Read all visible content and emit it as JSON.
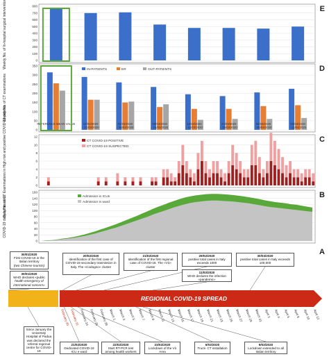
{
  "colors": {
    "blue": "#3b6fc9",
    "orange": "#e87d34",
    "gray": "#a6a6a6",
    "red_dark": "#a01f1f",
    "red_light": "#f0a0a0",
    "green": "#59a83a",
    "icu_gray": "#c4c4c4",
    "highlight": "#5aa83a",
    "timeline_red": "#cc2a16",
    "timeline_yellow": "#f2b21a"
  },
  "panels": {
    "E": "E",
    "D": "D",
    "C": "C",
    "B": "B",
    "A": "A"
  },
  "chart_data": [
    {
      "panel": "E",
      "type": "bar",
      "ylabel": "Weekly No. of In-hospital surgical interventions",
      "yticks": [
        "0",
        "100",
        "200",
        "300",
        "400",
        "500",
        "600",
        "700",
        "800"
      ],
      "ylim": [
        0,
        800
      ],
      "values": [
        780,
        700,
        710,
        530,
        480,
        480,
        470,
        500
      ],
      "highlight_index": 0
    },
    {
      "panel": "D",
      "type": "bar",
      "ylabel": "Weekly No. of CT examinations",
      "yticks": [
        "0",
        "50",
        "100",
        "150",
        "200",
        "250",
        "300",
        "350"
      ],
      "ylim": [
        0,
        350
      ],
      "categories": [
        "REFERENCE MEAN VALUE",
        "24/02/2020 - 01/03/2020",
        "02/03/2020 - 08/03/2020",
        "09/03/2020 - 15/03/2020",
        "16/03/2020 - 22/03/2020",
        "23/03/2020 - 29/03/2020",
        "30/03/2020 - 05/04/2020",
        "06/04/2020 - 12/04/2020"
      ],
      "series": [
        {
          "name": "IN-PATIENTS",
          "values": [
            315,
            290,
            260,
            235,
            195,
            185,
            205,
            225
          ]
        },
        {
          "name": "ER",
          "values": [
            255,
            165,
            150,
            125,
            115,
            115,
            130,
            135
          ]
        },
        {
          "name": "OUT-PATIENTS",
          "values": [
            215,
            165,
            155,
            140,
            55,
            60,
            60,
            65
          ]
        }
      ]
    },
    {
      "panel": "C",
      "type": "bar",
      "ylabel": "Daily No. of CT Examinations in High risk and positive COVID-19 patients",
      "yticks": [
        "0",
        "2",
        "4",
        "6",
        "8",
        "10",
        "12"
      ],
      "ylim": [
        0,
        12
      ],
      "series": [
        {
          "name": "CT COVID-19 POSITIVE",
          "values": [
            0,
            0,
            1,
            0,
            0,
            0,
            0,
            0,
            0,
            0,
            0,
            0,
            0,
            0,
            0,
            1,
            0,
            1,
            0,
            0,
            1,
            0,
            1,
            0,
            1,
            0,
            1,
            0,
            0,
            1,
            1,
            0,
            2,
            2,
            1,
            1,
            3,
            5,
            3,
            2,
            1,
            4,
            6,
            3,
            2,
            3,
            3,
            2,
            1,
            3,
            5,
            4,
            3,
            2,
            2,
            5,
            5,
            3,
            2,
            3,
            6,
            5,
            4,
            3,
            2,
            3,
            2,
            2,
            1,
            2,
            2,
            1
          ]
        },
        {
          "name": "CT COVID-19 SUSPECTED",
          "values": [
            0,
            0,
            1,
            0,
            0,
            0,
            0,
            0,
            0,
            0,
            0,
            0,
            0,
            0,
            0,
            1,
            0,
            1,
            0,
            0,
            2,
            0,
            1,
            0,
            1,
            0,
            1,
            0,
            0,
            1,
            1,
            0,
            2,
            2,
            2,
            1,
            3,
            5,
            3,
            2,
            2,
            4,
            5,
            3,
            2,
            3,
            3,
            2,
            2,
            3,
            5,
            4,
            3,
            2,
            2,
            5,
            6,
            4,
            2,
            3,
            7,
            6,
            5,
            4,
            3,
            3,
            2,
            2,
            2,
            2,
            2,
            2
          ]
        }
      ]
    },
    {
      "panel": "B",
      "type": "area",
      "ylabel": "COVID-19 daily admissions",
      "yticks": [
        "0",
        "20",
        "40",
        "60",
        "80",
        "100",
        "120",
        "140",
        "160"
      ],
      "ylim": [
        0,
        160
      ],
      "series": [
        {
          "name": "Admission in ICUs",
          "values": [
            0,
            2,
            3,
            5,
            8,
            10,
            13,
            17,
            21,
            26,
            31,
            37,
            43,
            49,
            55,
            62,
            69,
            76,
            83,
            91,
            98,
            106,
            113,
            119,
            126,
            132,
            138,
            143,
            147,
            150,
            152,
            154,
            155,
            155,
            154,
            153,
            151,
            149,
            147,
            144,
            141,
            138,
            134,
            131,
            128,
            126,
            124,
            121,
            119,
            116,
            113,
            110
          ]
        },
        {
          "name": "Admission in ward",
          "values": [
            0,
            1,
            2,
            4,
            6,
            8,
            10,
            13,
            16,
            20,
            24,
            29,
            34,
            39,
            44,
            50,
            56,
            62,
            68,
            74,
            80,
            87,
            93,
            99,
            105,
            111,
            116,
            121,
            125,
            128,
            130,
            132,
            133,
            133,
            132,
            131,
            130,
            128,
            126,
            124,
            121,
            118,
            115,
            112,
            110,
            108,
            106,
            104,
            102,
            100,
            98,
            96
          ]
        }
      ]
    }
  ],
  "timeline": {
    "title": "REGIONAL COVID-19 SPREAD",
    "dates_pre": [
      "February 20",
      "February 21"
    ],
    "dates": [
      "February 24",
      "February 26",
      "February 28",
      "March 1",
      "March 3",
      "March 5",
      "March 7",
      "March 9",
      "March 11",
      "March 13",
      "March 15",
      "March 17",
      "March 19",
      "March 21",
      "March 23",
      "March 25",
      "March 27",
      "March 29",
      "March 31",
      "April 2",
      "April 4",
      "April 6",
      "April 8",
      "April 10",
      "April 12"
    ]
  },
  "events_top": [
    {
      "head": "30/01/2020",
      "text": "First COVID-19 in the Italian territory",
      "note": "(two Chinese tourists)"
    },
    {
      "head": "30/01/2020",
      "text": "WHO declares «public",
      "note": "health emergency of international concern»"
    },
    {
      "head": "20/02/2020",
      "text": "Identification of the first case of COVID-19 secondary trasmission in Italy. The «Codogno» cluster"
    },
    {
      "head": "21/02/2020",
      "text": "Identification of the first regional case of COVID-19. The «Vò» cluster"
    },
    {
      "head": "29/02/2020",
      "text": "positive total cases in Italy exceeds 1000"
    },
    {
      "head": "11/03/2020",
      "text": "WHO declares the infection «pandemic»"
    },
    {
      "head": "30/03/2020",
      "text": "positive total cases in Italy exceeds 100,000"
    }
  ],
  "events_bottom": [
    {
      "head": "",
      "text": "Since January the University Hospital of Padua was declared the referral regional centre for COVID-19"
    },
    {
      "head": "21/02/2020",
      "text": "Dedicated COVID-19 ICU e ward"
    },
    {
      "head": "22/02/2020",
      "text": "Start RT-PCR test among health workers"
    },
    {
      "head": "23/02/2020",
      "text": "Lockdown of the Vò Area"
    },
    {
      "head": "6/03/2020",
      "text": "Truck- CT installation"
    },
    {
      "head": "9/03/2020",
      "text": "Lockdown extended to all Italian territory"
    }
  ]
}
